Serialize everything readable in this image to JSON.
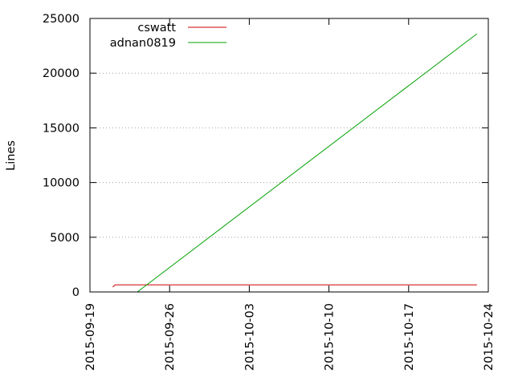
{
  "chart_data": {
    "type": "line",
    "title": "",
    "xlabel": "",
    "ylabel": "Lines",
    "x_type": "date",
    "xlim": [
      "2015-09-19",
      "2015-10-24"
    ],
    "ylim": [
      0,
      25000
    ],
    "x_ticks": [
      "2015-09-19",
      "2015-09-26",
      "2015-10-03",
      "2015-10-10",
      "2015-10-17",
      "2015-10-24"
    ],
    "y_ticks": [
      0,
      5000,
      10000,
      15000,
      20000,
      25000
    ],
    "y_tick_labels": [
      "0",
      "5000",
      "10000",
      "15000",
      "20000",
      "25000"
    ],
    "grid": true,
    "legend_position": "top-left",
    "series": [
      {
        "name": "cswatt",
        "color": "#cc0000",
        "points": [
          {
            "x": "2015-09-21",
            "y": 450
          },
          {
            "x": "2015-09-21 05:00",
            "y": 650
          },
          {
            "x": "2015-10-23",
            "y": 650
          }
        ]
      },
      {
        "name": "adnan0819",
        "color": "#00a000",
        "points": [
          {
            "x": "2015-09-23 04:00",
            "y": 0
          },
          {
            "x": "2015-10-23",
            "y": 23600
          }
        ]
      }
    ]
  }
}
